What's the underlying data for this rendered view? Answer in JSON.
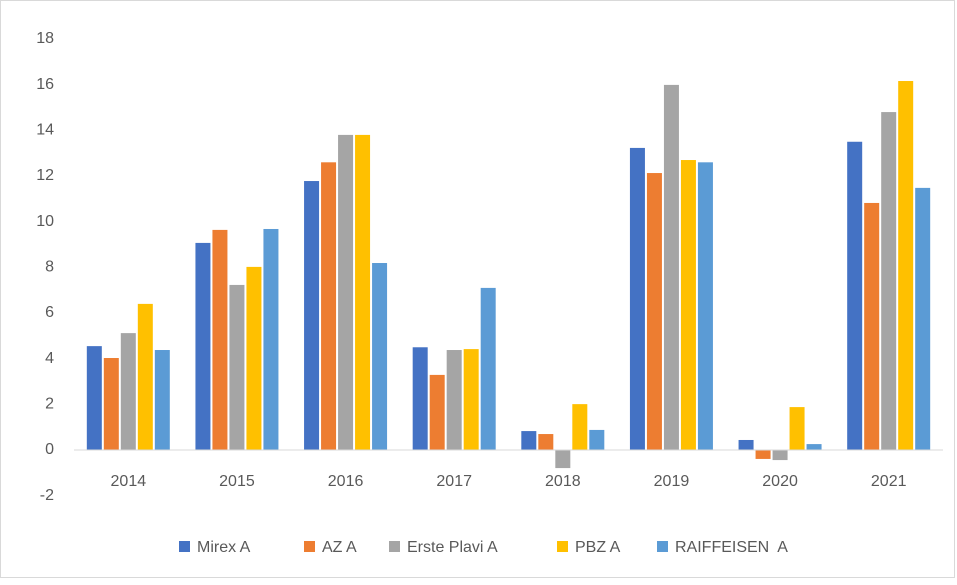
{
  "chart_data": {
    "type": "bar",
    "categories": [
      "2014",
      "2015",
      "2016",
      "2017",
      "2018",
      "2019",
      "2020",
      "2021"
    ],
    "series": [
      {
        "name": "Mirex A",
        "color": "#4472c4",
        "values": [
          4.55,
          9.07,
          11.78,
          4.5,
          0.83,
          13.23,
          0.44,
          13.5
        ]
      },
      {
        "name": "AZ A",
        "color": "#ed7d31",
        "values": [
          4.03,
          9.64,
          12.6,
          3.29,
          0.7,
          12.13,
          -0.39,
          10.82
        ]
      },
      {
        "name": "Erste Plavi A",
        "color": "#a5a5a5",
        "values": [
          5.12,
          7.23,
          13.8,
          4.38,
          -0.79,
          15.99,
          -0.44,
          14.8
        ]
      },
      {
        "name": "PBZ A",
        "color": "#ffc000",
        "values": [
          6.4,
          8.02,
          13.8,
          4.42,
          2.01,
          12.7,
          1.88,
          16.16
        ]
      },
      {
        "name": "RAIFFEISEN  A",
        "color": "#5b9bd5",
        "values": [
          4.38,
          9.68,
          8.19,
          7.1,
          0.88,
          12.6,
          0.26,
          11.48
        ]
      }
    ],
    "ylim": [
      -2,
      18
    ],
    "yticks": [
      -2,
      0,
      2,
      4,
      6,
      8,
      10,
      12,
      14,
      16,
      18
    ],
    "grid": false,
    "legend": "bottom"
  }
}
